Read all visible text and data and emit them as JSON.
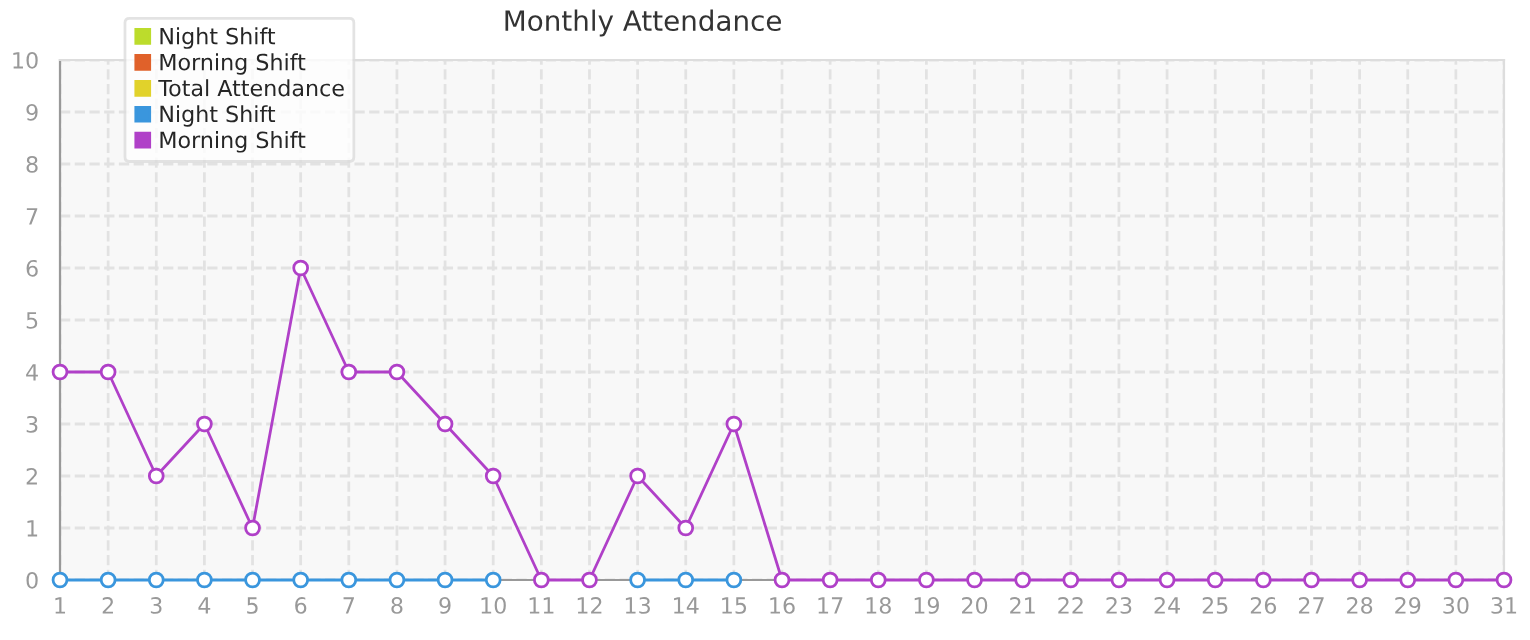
{
  "chart_data": {
    "type": "line",
    "title": "Monthly Attendance",
    "x": [
      1,
      2,
      3,
      4,
      5,
      6,
      7,
      8,
      9,
      10,
      11,
      12,
      13,
      14,
      15,
      16,
      17,
      18,
      19,
      20,
      21,
      22,
      23,
      24,
      25,
      26,
      27,
      28,
      29,
      30,
      31
    ],
    "series": [
      {
        "name": "Night Shift",
        "color": "#bcdc2c",
        "values": [
          null,
          null,
          null,
          null,
          null,
          null,
          null,
          null,
          null,
          null,
          null,
          null,
          null,
          null,
          null,
          null,
          null,
          null,
          null,
          null,
          null,
          null,
          null,
          null,
          null,
          null,
          null,
          null,
          null,
          null,
          null
        ]
      },
      {
        "name": "Morning Shift",
        "color": "#e0612a",
        "values": [
          null,
          null,
          null,
          null,
          null,
          null,
          null,
          null,
          null,
          null,
          null,
          null,
          null,
          null,
          null,
          null,
          null,
          null,
          null,
          null,
          null,
          null,
          null,
          null,
          null,
          null,
          null,
          null,
          null,
          null,
          null
        ]
      },
      {
        "name": "Total Attendance",
        "color": "#e1d22b",
        "values": [
          null,
          null,
          null,
          null,
          null,
          null,
          null,
          null,
          null,
          null,
          null,
          null,
          null,
          null,
          null,
          null,
          null,
          null,
          null,
          null,
          null,
          null,
          null,
          null,
          null,
          null,
          null,
          null,
          null,
          null,
          null
        ]
      },
      {
        "name": "Night Shift",
        "color": "#3a96dd",
        "values": [
          0,
          0,
          0,
          0,
          0,
          0,
          0,
          0,
          0,
          0,
          null,
          null,
          0,
          0,
          0,
          null,
          null,
          null,
          null,
          null,
          null,
          null,
          null,
          null,
          null,
          null,
          null,
          null,
          null,
          null,
          null
        ]
      },
      {
        "name": "Morning Shift",
        "color": "#b040c8",
        "values": [
          4,
          4,
          2,
          3,
          1,
          6,
          4,
          4,
          3,
          2,
          0,
          0,
          2,
          1,
          3,
          0,
          0,
          0,
          0,
          0,
          0,
          0,
          0,
          0,
          0,
          0,
          0,
          0,
          0,
          0,
          0
        ]
      }
    ],
    "xlim": [
      1,
      31
    ],
    "xticks": [
      1,
      2,
      3,
      4,
      5,
      6,
      7,
      8,
      9,
      10,
      11,
      12,
      13,
      14,
      15,
      16,
      17,
      18,
      19,
      20,
      21,
      22,
      23,
      24,
      25,
      26,
      27,
      28,
      29,
      30,
      31
    ],
    "ylim": [
      0,
      10
    ],
    "yticks": [
      0,
      1,
      2,
      3,
      4,
      5,
      6,
      7,
      8,
      9,
      10
    ],
    "grid": true,
    "legend": "top left",
    "marker": "circle",
    "line_style": "solid"
  }
}
